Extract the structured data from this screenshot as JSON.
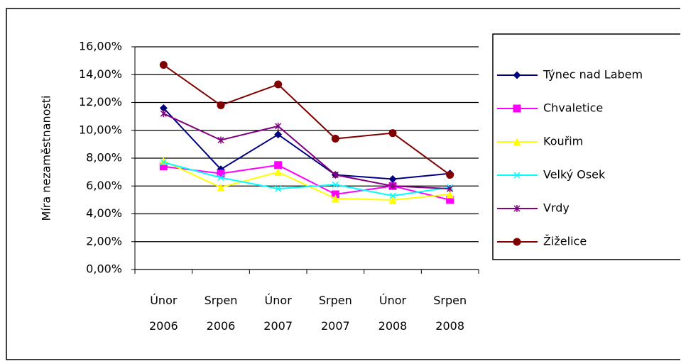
{
  "chart_data": {
    "type": "line",
    "y_label": "Míra nezaměstnanosti",
    "categories": [
      "Únor 2006",
      "Srpen 2006",
      "Únor 2007",
      "Srpen 2007",
      "Únor 2008",
      "Srpen 2008"
    ],
    "ylim": [
      0,
      16
    ],
    "yticks": [
      {
        "value": 0,
        "label": "0,00%"
      },
      {
        "value": 2,
        "label": "2,00%"
      },
      {
        "value": 4,
        "label": "4,00%"
      },
      {
        "value": 6,
        "label": "6,00%"
      },
      {
        "value": 8,
        "label": "8,00%"
      },
      {
        "value": 10,
        "label": "10,00%"
      },
      {
        "value": 12,
        "label": "12,00%"
      },
      {
        "value": 14,
        "label": "14,00%"
      },
      {
        "value": 16,
        "label": "16,00%"
      }
    ],
    "grid": true,
    "legend": "right",
    "series": [
      {
        "name": "Týnec nad Labem",
        "color": "#000080",
        "marker": "diamond",
        "values": [
          11.6,
          7.2,
          9.7,
          6.8,
          6.5,
          6.9
        ]
      },
      {
        "name": "Chvaletice",
        "color": "#ff00ff",
        "marker": "square",
        "values": [
          7.4,
          6.9,
          7.5,
          5.4,
          6.0,
          5.0
        ]
      },
      {
        "name": "Kouřim",
        "color": "#ffff00",
        "marker": "triangle",
        "values": [
          7.8,
          5.9,
          7.0,
          5.1,
          5.0,
          5.4
        ]
      },
      {
        "name": "Velký Osek",
        "color": "#00ffff",
        "marker": "x",
        "values": [
          7.7,
          6.6,
          5.8,
          6.1,
          5.3,
          5.9
        ]
      },
      {
        "name": "Vrdy",
        "color": "#800080",
        "marker": "star",
        "values": [
          11.2,
          9.3,
          10.3,
          6.8,
          6.0,
          5.8
        ]
      },
      {
        "name": "Žiželice",
        "color": "#800000",
        "marker": "circle",
        "values": [
          14.7,
          11.8,
          13.3,
          9.4,
          9.8,
          6.8
        ]
      }
    ]
  }
}
